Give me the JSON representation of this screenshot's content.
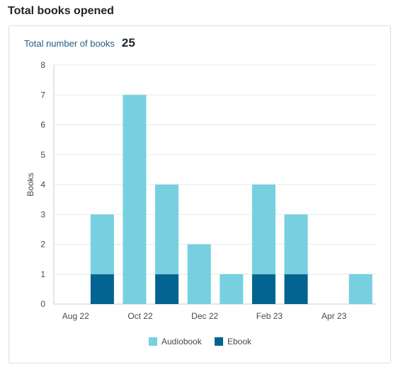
{
  "header": {
    "title": "Total books opened"
  },
  "summary": {
    "label": "Total number of books",
    "value": "25"
  },
  "colors": {
    "audiobook": "#76d0e0",
    "ebook": "#036391",
    "grid": "#e6e8eb"
  },
  "chart_data": {
    "type": "bar",
    "stacked": true,
    "categories": [
      "Aug 22",
      "Sep 22",
      "Oct 22",
      "Nov 22",
      "Dec 22",
      "Jan 23",
      "Feb 23",
      "Mar 23",
      "Apr 23",
      "May 23"
    ],
    "x_tick_labels": [
      "Aug 22",
      "Oct 22",
      "Dec 22",
      "Feb 23",
      "Apr 23"
    ],
    "series": [
      {
        "name": "Ebook",
        "values": [
          0,
          1,
          0,
          1,
          0,
          0,
          1,
          1,
          0,
          0
        ]
      },
      {
        "name": "Audiobook",
        "values": [
          0,
          2,
          7,
          3,
          2,
          1,
          3,
          2,
          0,
          1
        ]
      }
    ],
    "ylabel": "Books",
    "ylim": [
      0,
      8
    ],
    "y_ticks": [
      0,
      1,
      2,
      3,
      4,
      5,
      6,
      7,
      8
    ],
    "grid": true,
    "legend": [
      "Audiobook",
      "Ebook"
    ],
    "legend_position": "bottom"
  }
}
